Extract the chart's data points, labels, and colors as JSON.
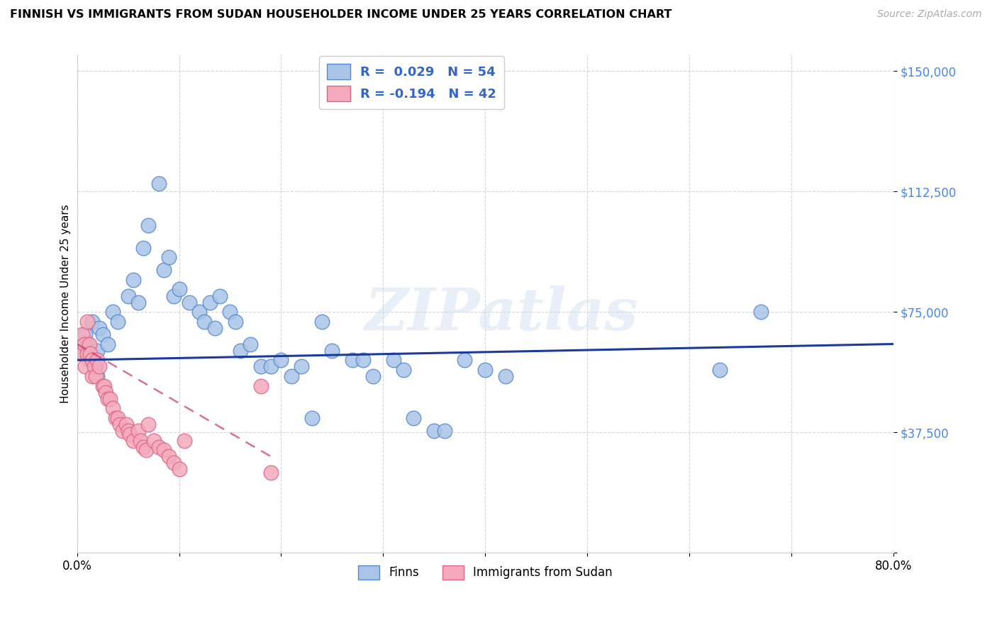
{
  "title": "FINNISH VS IMMIGRANTS FROM SUDAN HOUSEHOLDER INCOME UNDER 25 YEARS CORRELATION CHART",
  "source": "Source: ZipAtlas.com",
  "ylabel": "Householder Income Under 25 years",
  "y_ticks": [
    0,
    37500,
    75000,
    112500,
    150000
  ],
  "y_tick_labels": [
    "",
    "$37,500",
    "$75,000",
    "$112,500",
    "$150,000"
  ],
  "xlim": [
    0.0,
    0.8
  ],
  "ylim": [
    0,
    155000
  ],
  "watermark": "ZIPatlas",
  "legend1_label": "R =  0.029   N = 54",
  "legend2_label": "R = -0.194   N = 42",
  "finns_color": "#aac4e8",
  "sudan_color": "#f4aabb",
  "finns_edge": "#5588cc",
  "sudan_edge": "#dd6688",
  "trendline_finns_color": "#1a3a9c",
  "trendline_sudan_color": "#cc3366",
  "finns_x": [
    0.005,
    0.008,
    0.01,
    0.012,
    0.015,
    0.018,
    0.02,
    0.02,
    0.022,
    0.025,
    0.03,
    0.035,
    0.04,
    0.05,
    0.055,
    0.06,
    0.065,
    0.07,
    0.08,
    0.085,
    0.09,
    0.095,
    0.1,
    0.11,
    0.12,
    0.125,
    0.13,
    0.135,
    0.14,
    0.15,
    0.155,
    0.16,
    0.17,
    0.18,
    0.19,
    0.2,
    0.21,
    0.22,
    0.23,
    0.24,
    0.25,
    0.27,
    0.28,
    0.29,
    0.31,
    0.32,
    0.33,
    0.35,
    0.36,
    0.38,
    0.4,
    0.42,
    0.63,
    0.67
  ],
  "finns_y": [
    63000,
    68000,
    65000,
    60000,
    72000,
    58000,
    55000,
    63000,
    70000,
    68000,
    65000,
    75000,
    72000,
    80000,
    85000,
    78000,
    95000,
    102000,
    115000,
    88000,
    92000,
    80000,
    82000,
    78000,
    75000,
    72000,
    78000,
    70000,
    80000,
    75000,
    72000,
    63000,
    65000,
    58000,
    58000,
    60000,
    55000,
    58000,
    42000,
    72000,
    63000,
    60000,
    60000,
    55000,
    60000,
    57000,
    42000,
    38000,
    38000,
    60000,
    57000,
    55000,
    57000,
    75000
  ],
  "sudan_x": [
    0.005,
    0.005,
    0.007,
    0.008,
    0.01,
    0.01,
    0.012,
    0.013,
    0.015,
    0.015,
    0.017,
    0.018,
    0.02,
    0.022,
    0.025,
    0.027,
    0.028,
    0.03,
    0.032,
    0.035,
    0.038,
    0.04,
    0.042,
    0.045,
    0.048,
    0.05,
    0.052,
    0.055,
    0.06,
    0.062,
    0.065,
    0.068,
    0.07,
    0.075,
    0.08,
    0.085,
    0.09,
    0.095,
    0.1,
    0.105,
    0.18,
    0.19
  ],
  "sudan_y": [
    68000,
    62000,
    65000,
    58000,
    72000,
    62000,
    65000,
    62000,
    60000,
    55000,
    58000,
    55000,
    60000,
    58000,
    52000,
    52000,
    50000,
    48000,
    48000,
    45000,
    42000,
    42000,
    40000,
    38000,
    40000,
    38000,
    37000,
    35000,
    38000,
    35000,
    33000,
    32000,
    40000,
    35000,
    33000,
    32000,
    30000,
    28000,
    26000,
    35000,
    52000,
    25000
  ]
}
